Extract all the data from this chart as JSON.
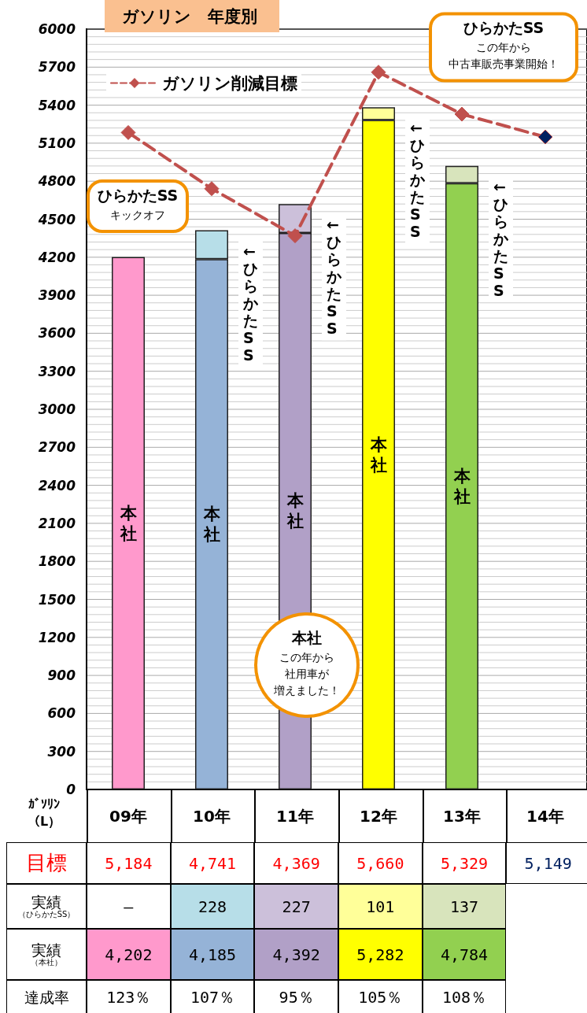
{
  "chart_data": {
    "type": "bar",
    "title": "ガソリン　年度別",
    "ylabel": "ｶﾞｿﾘﾝ（L）",
    "categories": [
      "09年",
      "10年",
      "11年",
      "12年",
      "13年",
      "14年"
    ],
    "stacked": true,
    "series": [
      {
        "name": "本社",
        "colors": [
          "#ff99cc",
          "#95b3d7",
          "#b1a0c7",
          "#ffff00",
          "#92d050",
          "#92d050"
        ],
        "values": [
          4202,
          4185,
          4392,
          5282,
          4784,
          null
        ],
        "value_labels": [
          "4,202",
          "4,185",
          "4,392",
          "5,282",
          "4,784",
          null
        ]
      },
      {
        "name": "←ひらかたSS",
        "colors": [
          "#b7dee8",
          "#b7dee8",
          "#ccc0da",
          "#ffff99",
          "#d8e4bc",
          "#d8e4bc"
        ],
        "values": [
          null,
          228,
          227,
          101,
          137,
          null
        ],
        "value_labels": [
          "—",
          "228",
          "227",
          "101",
          "137",
          null
        ]
      },
      {
        "name": "ガソリン削減目標",
        "type": "line",
        "color": "#c0504d",
        "colors": [
          "#c0504d",
          "#c0504d",
          "#c0504d",
          "#c0504d",
          "#c0504d",
          "#002060"
        ],
        "values": [
          5184,
          4741,
          4369,
          5660,
          5329,
          5149
        ],
        "value_labels": [
          "5,184",
          "4,741",
          "4,369",
          "5,660",
          "5,329",
          "5,149"
        ]
      }
    ],
    "ylim": [
      0,
      6000
    ],
    "yticks": [
      0,
      300,
      600,
      900,
      1200,
      1500,
      1800,
      2100,
      2400,
      2700,
      3000,
      3300,
      3600,
      3900,
      4200,
      4500,
      4800,
      5100,
      5400,
      5700,
      6000
    ],
    "grid": "y",
    "legend": "top left",
    "marker": "diamond",
    "line_style": "dashed",
    "annotations": [
      "目標",
      "実績",
      "（ひらかたSS）",
      "実績",
      "（本社）",
      "達成率",
      "123％",
      "107％",
      "95％",
      "105％",
      "108％",
      "ひらかたSS",
      "キックオフ",
      "ひらかたSS",
      "この年から",
      "中古車販売事業開始！",
      "本社",
      "この年から",
      "社用車が",
      "増えました！"
    ]
  }
}
